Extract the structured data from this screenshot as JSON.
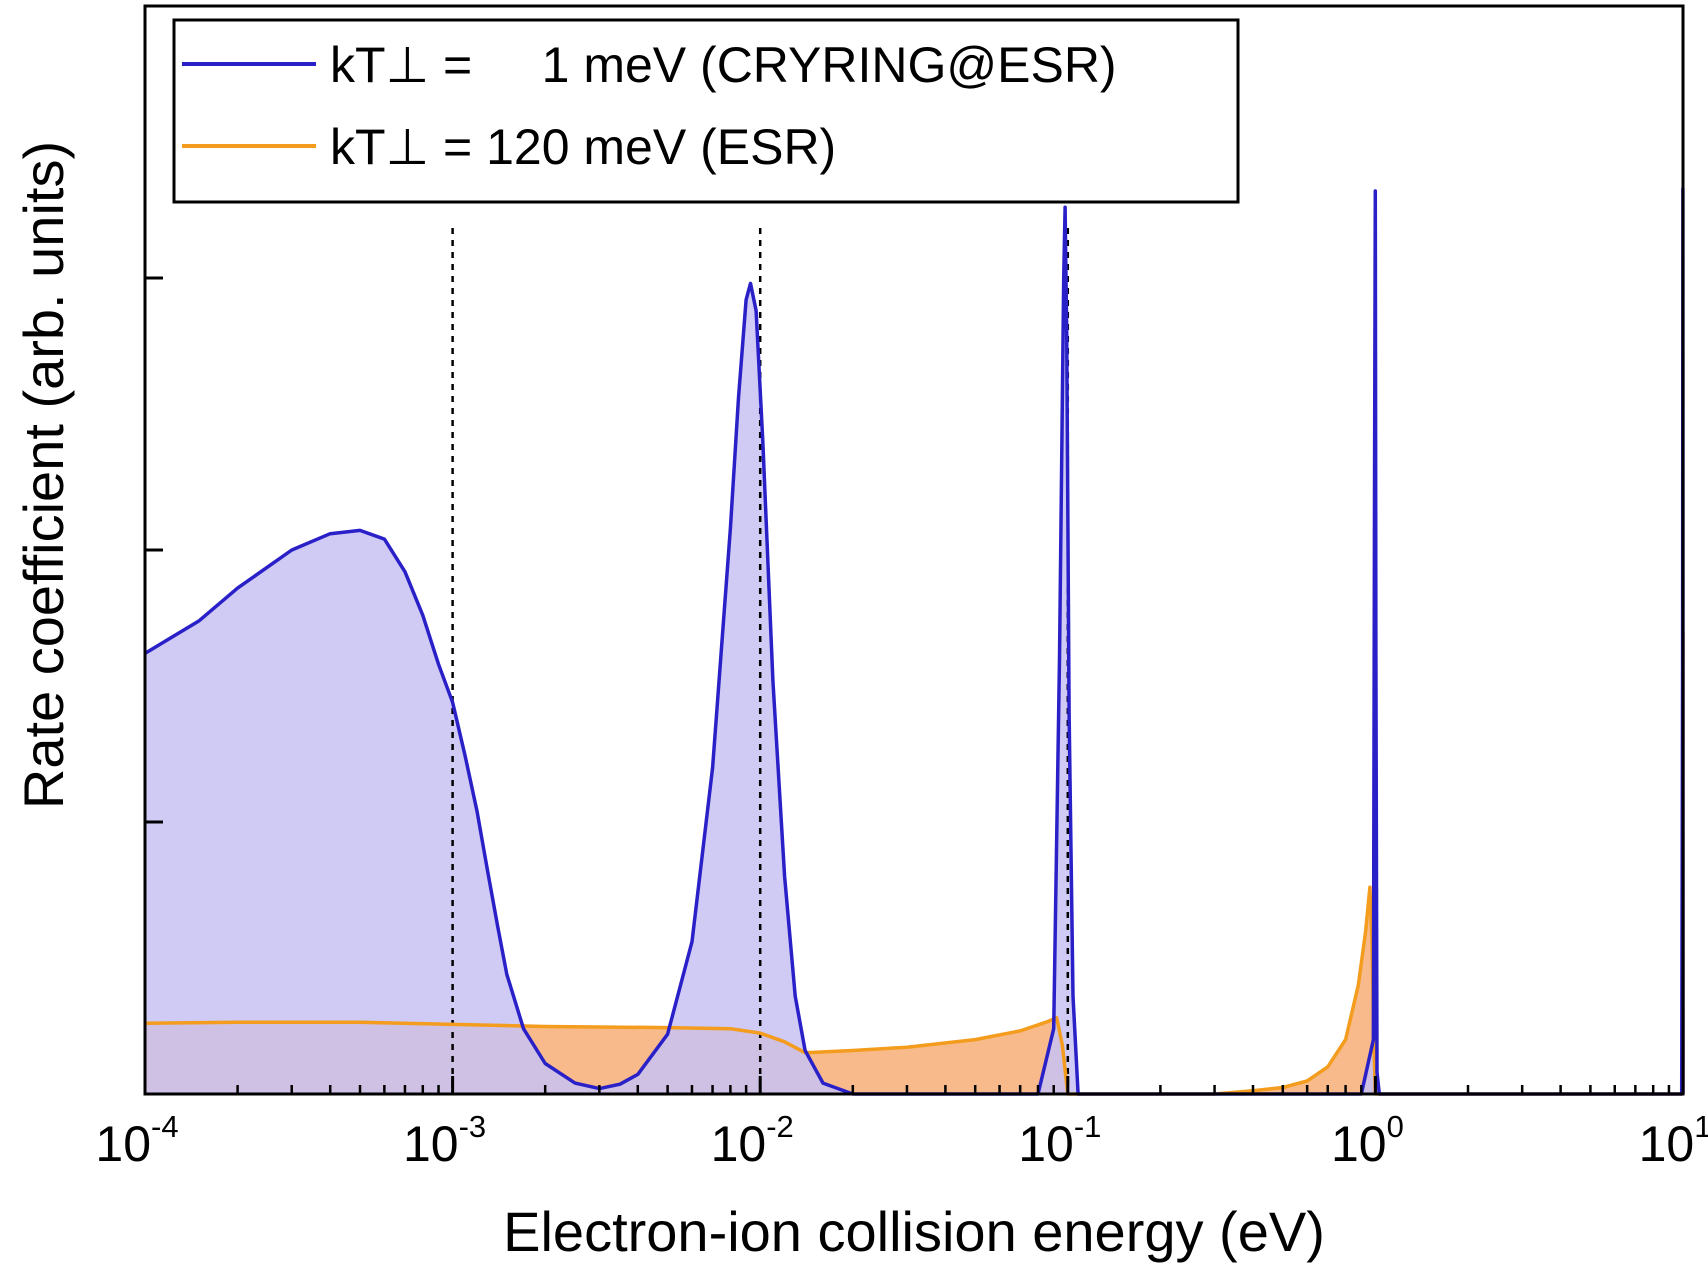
{
  "chart_data": {
    "type": "area",
    "title": "",
    "xlabel": "Electron-ion collision energy (eV)",
    "ylabel": "Rate coefficient (arb. units)",
    "x_scale": "log",
    "xlim": [
      0.0001,
      10
    ],
    "ylim": [
      0,
      1
    ],
    "x_ticks": [
      {
        "value": 0.0001,
        "base": "10",
        "exp": "-4"
      },
      {
        "value": 0.001,
        "base": "10",
        "exp": "-3"
      },
      {
        "value": 0.01,
        "base": "10",
        "exp": "-2"
      },
      {
        "value": 0.1,
        "base": "10",
        "exp": "-1"
      },
      {
        "value": 1,
        "base": "10",
        "exp": "0"
      },
      {
        "value": 10,
        "base": "10",
        "exp": "1"
      }
    ],
    "y_ticks": [
      0.25,
      0.5,
      0.75
    ],
    "y_tick_labels_shown": false,
    "reference_lines_x": [
      0.001,
      0.01,
      0.1,
      1,
      10
    ],
    "legend_position": "top-left",
    "series": [
      {
        "name": "kT⊥ =     1 meV (CRYRING@ESR)",
        "color": "#2a20c8",
        "fill": "#c8c2f2",
        "points": [
          [
            0.0001,
            0.405
          ],
          [
            0.00015,
            0.435
          ],
          [
            0.0002,
            0.465
          ],
          [
            0.0003,
            0.5
          ],
          [
            0.0004,
            0.515
          ],
          [
            0.0005,
            0.518
          ],
          [
            0.0006,
            0.51
          ],
          [
            0.0007,
            0.48
          ],
          [
            0.0008,
            0.44
          ],
          [
            0.0009,
            0.395
          ],
          [
            0.001,
            0.36
          ],
          [
            0.0011,
            0.31
          ],
          [
            0.0012,
            0.26
          ],
          [
            0.0013,
            0.205
          ],
          [
            0.0014,
            0.155
          ],
          [
            0.0015,
            0.11
          ],
          [
            0.0017,
            0.06
          ],
          [
            0.002,
            0.028
          ],
          [
            0.0025,
            0.01
          ],
          [
            0.003,
            0.005
          ],
          [
            0.0035,
            0.009
          ],
          [
            0.004,
            0.018
          ],
          [
            0.005,
            0.055
          ],
          [
            0.006,
            0.14
          ],
          [
            0.007,
            0.3
          ],
          [
            0.008,
            0.52
          ],
          [
            0.0085,
            0.64
          ],
          [
            0.009,
            0.73
          ],
          [
            0.0093,
            0.745
          ],
          [
            0.0097,
            0.72
          ],
          [
            0.0102,
            0.6
          ],
          [
            0.011,
            0.38
          ],
          [
            0.012,
            0.2
          ],
          [
            0.013,
            0.09
          ],
          [
            0.014,
            0.04
          ],
          [
            0.016,
            0.01
          ],
          [
            0.02,
            0.0
          ],
          [
            0.08,
            0.0
          ],
          [
            0.09,
            0.06
          ],
          [
            0.094,
            0.4
          ],
          [
            0.097,
            0.75
          ],
          [
            0.098,
            0.815
          ],
          [
            0.0992,
            0.7
          ],
          [
            0.101,
            0.35
          ],
          [
            0.104,
            0.09
          ],
          [
            0.108,
            0.0
          ],
          [
            0.9,
            0.0
          ],
          [
            0.985,
            0.05
          ],
          [
            0.993,
            0.55
          ],
          [
            0.999,
            0.83
          ],
          [
            1.004,
            0.4
          ],
          [
            1.012,
            0.02
          ],
          [
            1.03,
            0.0
          ],
          [
            9.9,
            0.0
          ],
          [
            9.97,
            0.4
          ],
          [
            9.995,
            0.832
          ],
          [
            10,
            0.0
          ]
        ]
      },
      {
        "name": "kT⊥ = 120 meV (ESR)",
        "color": "#f39c1d",
        "fill": "#f7b37e",
        "points": [
          [
            0.0001,
            0.065
          ],
          [
            0.0002,
            0.066
          ],
          [
            0.0005,
            0.066
          ],
          [
            0.001,
            0.064
          ],
          [
            0.002,
            0.062
          ],
          [
            0.005,
            0.061
          ],
          [
            0.008,
            0.06
          ],
          [
            0.01,
            0.056
          ],
          [
            0.012,
            0.048
          ],
          [
            0.014,
            0.038
          ],
          [
            0.02,
            0.04
          ],
          [
            0.03,
            0.043
          ],
          [
            0.05,
            0.05
          ],
          [
            0.07,
            0.058
          ],
          [
            0.085,
            0.066
          ],
          [
            0.092,
            0.07
          ],
          [
            0.096,
            0.045
          ],
          [
            0.1,
            0.0
          ],
          [
            0.3,
            0.0
          ],
          [
            0.4,
            0.003
          ],
          [
            0.5,
            0.006
          ],
          [
            0.6,
            0.012
          ],
          [
            0.7,
            0.025
          ],
          [
            0.8,
            0.05
          ],
          [
            0.88,
            0.1
          ],
          [
            0.93,
            0.15
          ],
          [
            0.96,
            0.19
          ],
          [
            0.975,
            0.14
          ],
          [
            0.99,
            0.04
          ],
          [
            1.0,
            0.0
          ],
          [
            9.9,
            0.0
          ],
          [
            9.95,
            0.05
          ],
          [
            9.98,
            0.2
          ],
          [
            9.995,
            0.425
          ],
          [
            10,
            0.0
          ]
        ]
      }
    ]
  }
}
